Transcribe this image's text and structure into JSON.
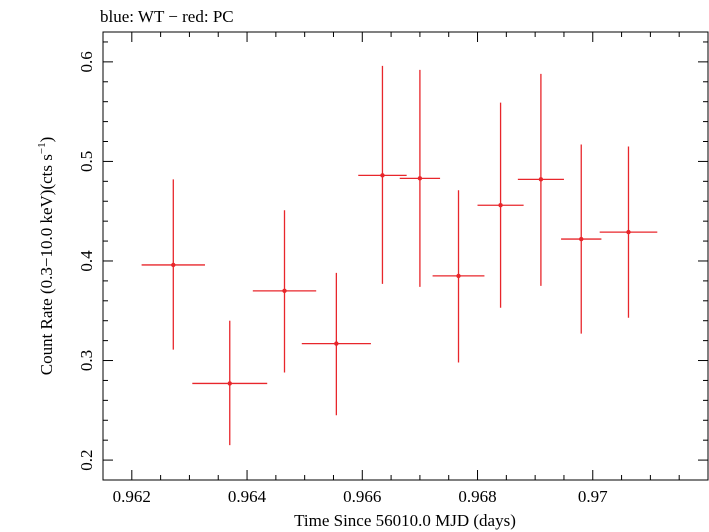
{
  "chart_data": {
    "type": "scatter",
    "title": "blue: WT − red: PC",
    "xlabel": "Time Since 56010.0 MJD (days)",
    "ylabel_main": "Count Rate (0.3−10.0 keV)(cts s",
    "ylabel_sup": "−1",
    "ylabel_close": ")",
    "xlim": [
      0.9615,
      0.972
    ],
    "ylim": [
      0.18,
      0.63
    ],
    "xticks": [
      0.962,
      0.964,
      0.966,
      0.968,
      0.97
    ],
    "xtick_labels": [
      "0.962",
      "0.964",
      "0.966",
      "0.968",
      "0.97"
    ],
    "yticks": [
      0.2,
      0.3,
      0.4,
      0.5,
      0.6
    ],
    "ytick_labels": [
      "0.2",
      "0.3",
      "0.4",
      "0.5",
      "0.6"
    ],
    "grid": false,
    "series": [
      {
        "color": "#e8262b",
        "points": [
          {
            "x": 0.96272,
            "xerr": 0.00055,
            "y": 0.396,
            "ylo": 0.311,
            "yhi": 0.482
          },
          {
            "x": 0.9637,
            "xerr": 0.00065,
            "y": 0.277,
            "ylo": 0.215,
            "yhi": 0.34
          },
          {
            "x": 0.96465,
            "xerr": 0.00055,
            "y": 0.37,
            "ylo": 0.288,
            "yhi": 0.451
          },
          {
            "x": 0.96555,
            "xerr": 0.0006,
            "y": 0.317,
            "ylo": 0.245,
            "yhi": 0.388
          },
          {
            "x": 0.96635,
            "xerr": 0.00042,
            "y": 0.486,
            "ylo": 0.377,
            "yhi": 0.596
          },
          {
            "x": 0.967,
            "xerr": 0.00035,
            "y": 0.483,
            "ylo": 0.374,
            "yhi": 0.592
          },
          {
            "x": 0.96767,
            "xerr": 0.00045,
            "y": 0.385,
            "ylo": 0.298,
            "yhi": 0.471
          },
          {
            "x": 0.9684,
            "xerr": 0.0004,
            "y": 0.456,
            "ylo": 0.353,
            "yhi": 0.559
          },
          {
            "x": 0.9691,
            "xerr": 0.0004,
            "y": 0.482,
            "ylo": 0.375,
            "yhi": 0.588
          },
          {
            "x": 0.9698,
            "xerr": 0.00035,
            "y": 0.422,
            "ylo": 0.327,
            "yhi": 0.517
          },
          {
            "x": 0.97062,
            "xerr": 0.0005,
            "y": 0.429,
            "ylo": 0.343,
            "yhi": 0.515
          }
        ]
      }
    ]
  }
}
